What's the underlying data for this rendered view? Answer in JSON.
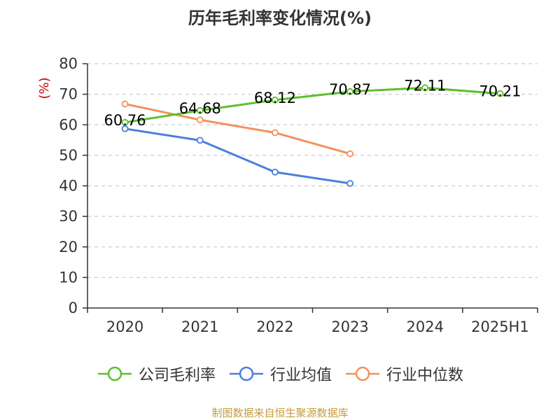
{
  "chart_data": {
    "type": "line",
    "title": "历年毛利率变化情况(%)",
    "y_unit": "(%)",
    "categories": [
      "2020",
      "2021",
      "2022",
      "2023",
      "2024",
      "2025H1"
    ],
    "ylim": [
      0,
      80
    ],
    "yticks": [
      0,
      10,
      20,
      30,
      40,
      50,
      60,
      70,
      80
    ],
    "grid": true,
    "legend_position": "bottom",
    "series": [
      {
        "name": "公司毛利率",
        "color": "#5cc12a",
        "values": [
          60.76,
          64.68,
          68.12,
          70.87,
          72.11,
          70.21
        ],
        "labels": [
          "60.76",
          "64.68",
          "68.12",
          "70.87",
          "72.11",
          "70.21"
        ]
      },
      {
        "name": "行业均值",
        "color": "#4a7fdc",
        "values": [
          58.7,
          54.9,
          44.5,
          40.8,
          null,
          null
        ]
      },
      {
        "name": "行业中位数",
        "color": "#f4915a",
        "values": [
          66.8,
          61.6,
          57.4,
          50.5,
          null,
          null
        ]
      }
    ]
  },
  "source_text": "制图数据来自恒生聚源数据库"
}
